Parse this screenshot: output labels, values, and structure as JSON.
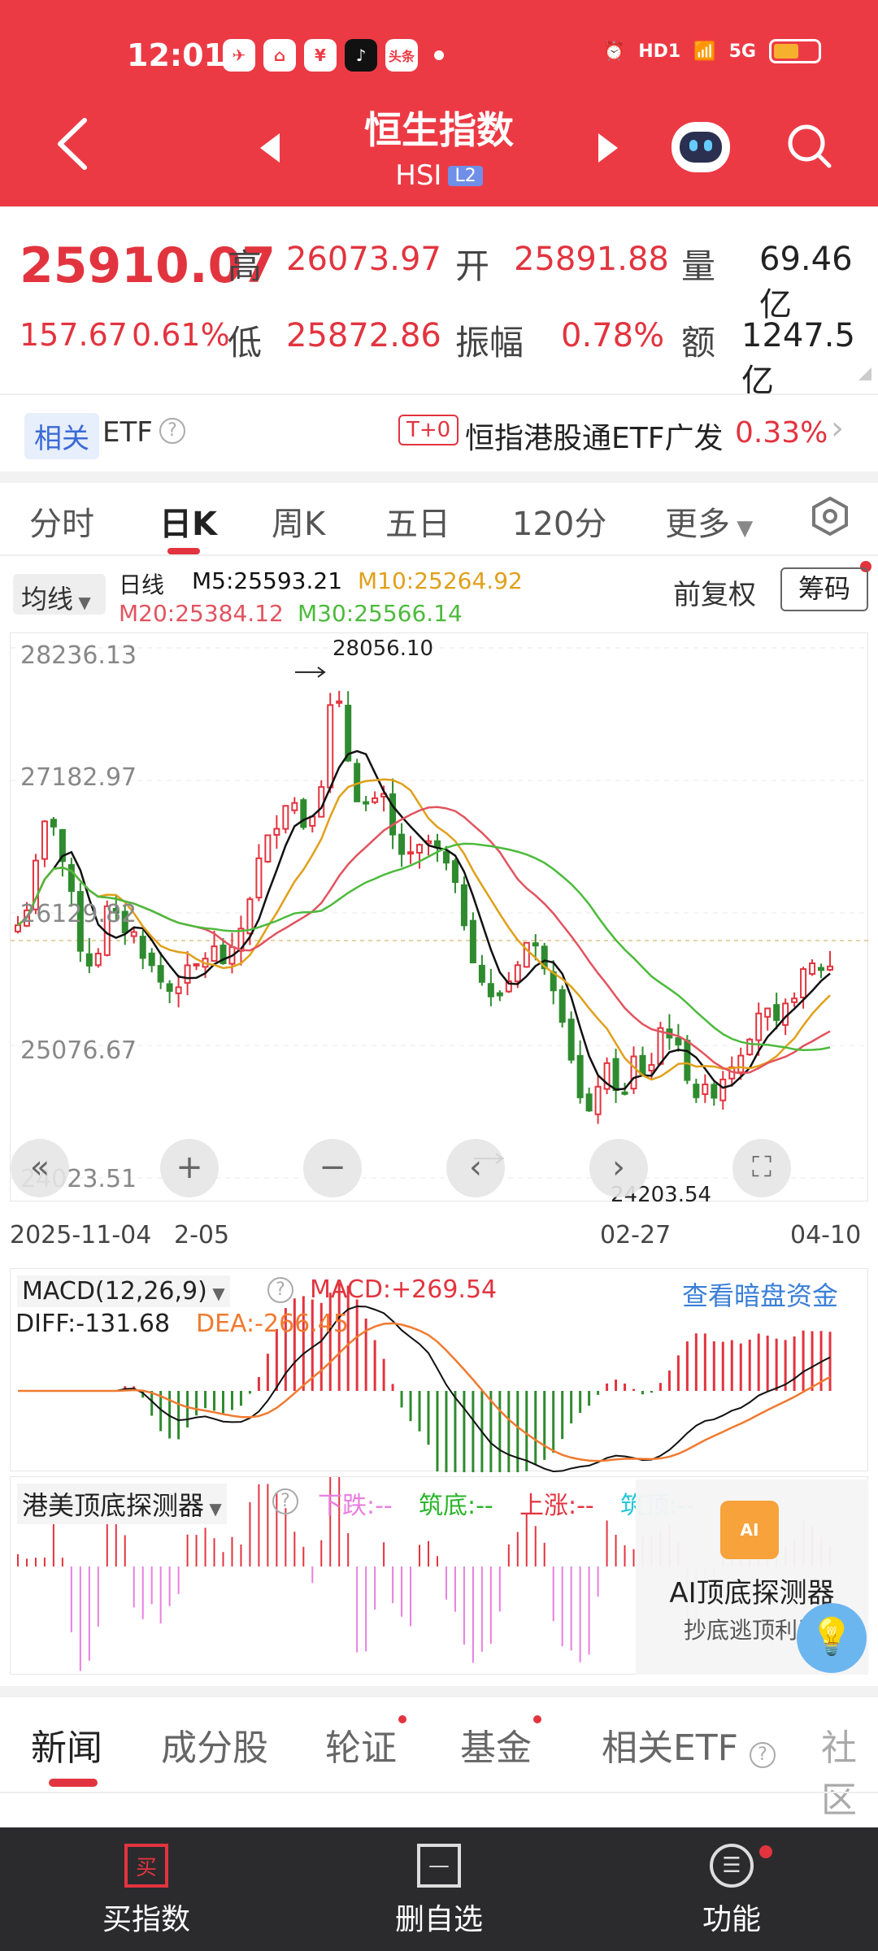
{
  "status_bar": {
    "time": "12:01",
    "app_icons": [
      "telegram-icon",
      "home-icon",
      "bank-icon",
      "tiktok-icon",
      "toutiao-icon"
    ],
    "toutiao_label": "头条",
    "hd_label": "HD1",
    "network_label": "5G"
  },
  "header": {
    "title": "恒生指数",
    "subtitle": "HSI",
    "badge": "L2"
  },
  "quote": {
    "price": "25910.07",
    "change": "157.67",
    "change_pct": "0.61%",
    "high_label": "高",
    "high": "26073.97",
    "open_label": "开",
    "open": "25891.88",
    "volume_label": "量",
    "volume": "69.46亿",
    "low_label": "低",
    "low": "25872.86",
    "amplitude_label": "振幅",
    "amplitude": "0.78%",
    "amount_label": "额",
    "amount": "1247.5亿"
  },
  "etf_bar": {
    "tag": "相关",
    "label": "ETF",
    "t0": "T+0",
    "name": "恒指港股通ETF广发",
    "pct": "0.33%"
  },
  "k_tabs": [
    "分时",
    "日K",
    "周K",
    "五日",
    "120分",
    "更多"
  ],
  "ma_legend": {
    "select": "均线",
    "period": "日线",
    "m5": "M5:25593.21",
    "m10": "M10:25264.92",
    "m20": "M20:25384.12",
    "m30": "M30:25566.14",
    "adjust": "前复权",
    "chip_button": "筹码"
  },
  "colors": {
    "brand": "#ec3a45",
    "up": "#e2343f",
    "down": "#2f8b2f",
    "m5": "#111111",
    "m10": "#e0a01a",
    "m20": "#e2535f",
    "m30": "#4cba3c",
    "dea": "#f07a30",
    "link": "#3a7fd8",
    "detect_pink": "#e87fe0",
    "detect_cyan": "#22c6d8"
  },
  "chart_labels": {
    "y_ticks": [
      "28236.13",
      "27182.97",
      "26129.82",
      "25076.67",
      "24023.51"
    ],
    "max_marker": "28056.10",
    "min_marker": "24203.54",
    "x_dates": [
      "2025-11-04",
      "2-05",
      "02-27",
      "04-10"
    ]
  },
  "macd": {
    "title": "MACD(12,26,9)",
    "macd_value": "MACD:+269.54",
    "diff": "DIFF:-131.68",
    "dea": "DEA:-266.45",
    "link": "查看暗盘资金"
  },
  "detector": {
    "title": "港美顶底探测器",
    "down": "下跌:--",
    "bottom": "筑底:--",
    "up": "上涨:--",
    "top": "筑顶:--"
  },
  "ai_promo": {
    "icon_text": "AI",
    "title": "AI顶底探测器",
    "subtitle": "抄底逃顶利器"
  },
  "news_tabs": [
    "新闻",
    "成分股",
    "轮证",
    "基金",
    "相关ETF",
    "社区"
  ],
  "bottom_nav": [
    {
      "label": "买指数",
      "icon": "buy-icon",
      "icon_text": "买"
    },
    {
      "label": "删自选",
      "icon": "minus-square-icon",
      "icon_text": "—"
    },
    {
      "label": "功能",
      "icon": "menu-circle-icon",
      "icon_text": "☰"
    }
  ],
  "chart_data": {
    "type": "candlestick",
    "y_ticks": [
      28236.13,
      27182.97,
      26129.82,
      25076.67,
      24023.51
    ],
    "ylim": [
      24023.51,
      28236.13
    ],
    "x_tick_labels": [
      "2025-11-04",
      "2-05",
      "02-27",
      "04-10"
    ],
    "highest": 28056.1,
    "lowest": 24203.54,
    "last_close": 25910.07
  }
}
